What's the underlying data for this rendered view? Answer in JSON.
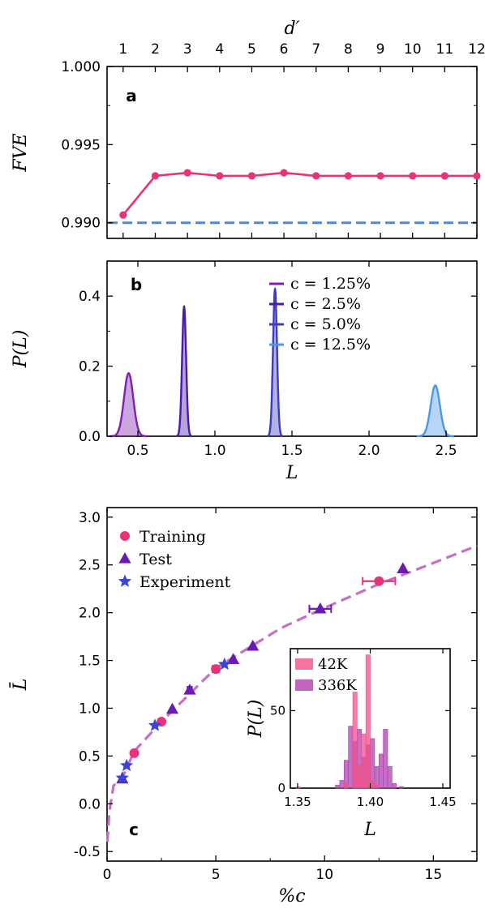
{
  "chart_data": [
    {
      "panel": "a",
      "type": "line",
      "panel_label": "a",
      "xlabel": "d′",
      "ylabel": "FVE",
      "xlim": [
        0.5,
        12
      ],
      "ylim": [
        0.989,
        1.0
      ],
      "x_axis_position": "top",
      "xticks": [
        "1",
        "2",
        "3",
        "4",
        "5",
        "6",
        "7",
        "8",
        "9",
        "10",
        "11",
        "12"
      ],
      "yticks": [
        "0.990",
        "0.995",
        "1.000"
      ],
      "series": [
        {
          "x": [
            1,
            2,
            3,
            4,
            5,
            6,
            7,
            8,
            9,
            10,
            11,
            12
          ],
          "values": [
            0.9905,
            0.993,
            0.9932,
            0.993,
            0.993,
            0.9932,
            0.993,
            0.993,
            0.993,
            0.993,
            0.993,
            0.993
          ],
          "color": "#e8337a"
        }
      ],
      "reference_line": {
        "y": 0.99,
        "style": "dashed",
        "color": "#3b8fe6"
      }
    },
    {
      "panel": "b",
      "type": "area",
      "panel_label": "b",
      "xlabel": "L",
      "ylabel": "P(L)",
      "xlim": [
        0.3,
        2.7
      ],
      "ylim": [
        0,
        0.5
      ],
      "xticks": [
        "0.5",
        "1.0",
        "1.5",
        "2.0",
        "2.5"
      ],
      "yticks": [
        "0.0",
        "0.2",
        "0.4"
      ],
      "series": [
        {
          "name": "c = 1.25%",
          "center": 0.44,
          "peak": 0.18,
          "width": 0.03,
          "color": "#8020b0"
        },
        {
          "name": "c = 2.5%",
          "center": 0.8,
          "peak": 0.37,
          "width": 0.013,
          "color": "#4a1aa8"
        },
        {
          "name": "c = 5.0%",
          "center": 1.39,
          "peak": 0.42,
          "width": 0.013,
          "color": "#3d3bc0"
        },
        {
          "name": "c = 12.5%",
          "center": 2.43,
          "peak": 0.145,
          "width": 0.03,
          "color": "#4a98e6"
        }
      ],
      "legend": {
        "position": "top-right",
        "labels": [
          "c = 1.25%",
          "c = 2.5%",
          "c = 5.0%",
          "c = 12.5%"
        ]
      }
    },
    {
      "panel": "c",
      "type": "scatter",
      "panel_label": "c",
      "xlabel": "%c",
      "ylabel": "L̄",
      "xlim": [
        0,
        17
      ],
      "ylim": [
        -0.6,
        3.1
      ],
      "xticks": [
        "0",
        "5",
        "10",
        "15"
      ],
      "yticks": [
        "-0.5",
        "0.0",
        "0.5",
        "1.0",
        "1.5",
        "2.0",
        "2.5",
        "3.0"
      ],
      "series": [
        {
          "name": "Training",
          "marker": "circle",
          "color": "#e8337a",
          "x": [
            1.25,
            2.5,
            5.0,
            12.5
          ],
          "values": [
            0.53,
            0.86,
            1.41,
            2.33
          ],
          "xerr": [
            0.1,
            0.1,
            0.15,
            0.75
          ]
        },
        {
          "name": "Test",
          "marker": "triangle",
          "color": "#6a1cb0",
          "x": [
            0.7,
            3.0,
            3.8,
            5.8,
            6.7,
            9.8,
            13.6
          ],
          "values": [
            0.26,
            0.99,
            1.19,
            1.51,
            1.65,
            2.04,
            2.46
          ],
          "xerr": [
            0,
            0,
            0.1,
            0,
            0,
            0.5,
            0
          ]
        },
        {
          "name": "Experiment",
          "marker": "star",
          "color": "#3a44d6",
          "x": [
            0.7,
            0.9,
            2.2,
            5.4
          ],
          "values": [
            0.27,
            0.4,
            0.82,
            1.46
          ]
        }
      ],
      "fit_curve": {
        "style": "dashed",
        "color": "#c66fc6",
        "x": [
          0.02,
          0.1,
          0.3,
          0.7,
          1.25,
          2.5,
          5,
          8,
          10,
          12.5,
          15,
          17
        ],
        "values": [
          -0.4,
          -0.09,
          0.19,
          0.27,
          0.55,
          0.86,
          1.42,
          1.84,
          2.05,
          2.3,
          2.52,
          2.7
        ]
      },
      "legend": {
        "position": "top-left",
        "labels": [
          "Training",
          "Test",
          "Experiment"
        ]
      },
      "inset": {
        "type": "bar",
        "xlabel": "L",
        "ylabel": "P(L)",
        "xlim": [
          1.345,
          1.455
        ],
        "ylim": [
          0,
          90
        ],
        "xticks": [
          "1.35",
          "1.40",
          "1.45"
        ],
        "yticks": [
          "0",
          "50"
        ],
        "series": [
          {
            "name": "42K",
            "color": "#f0508a",
            "bins": [
              [
                1.349,
                1.352,
                0.8
              ],
              [
                1.382,
                1.385,
                3
              ],
              [
                1.388,
                1.391,
                62
              ],
              [
                1.391,
                1.394,
                15
              ],
              [
                1.394,
                1.397,
                35
              ],
              [
                1.397,
                1.4,
                86
              ],
              [
                1.4,
                1.403,
                5
              ],
              [
                1.403,
                1.406,
                2
              ]
            ]
          },
          {
            "name": "336K",
            "color": "#b040b0",
            "bins": [
              [
                1.376,
                1.379,
                2
              ],
              [
                1.379,
                1.382,
                5
              ],
              [
                1.382,
                1.385,
                18
              ],
              [
                1.385,
                1.388,
                40
              ],
              [
                1.388,
                1.391,
                30
              ],
              [
                1.391,
                1.394,
                38
              ],
              [
                1.394,
                1.397,
                20
              ],
              [
                1.397,
                1.4,
                28
              ],
              [
                1.4,
                1.403,
                32
              ],
              [
                1.403,
                1.406,
                14
              ],
              [
                1.406,
                1.409,
                22
              ],
              [
                1.409,
                1.412,
                38
              ],
              [
                1.412,
                1.415,
                14
              ],
              [
                1.415,
                1.418,
                3
              ],
              [
                1.42,
                1.423,
                1
              ]
            ]
          }
        ],
        "legend": {
          "position": "top-left",
          "labels": [
            "42K",
            "336K"
          ]
        }
      }
    }
  ]
}
